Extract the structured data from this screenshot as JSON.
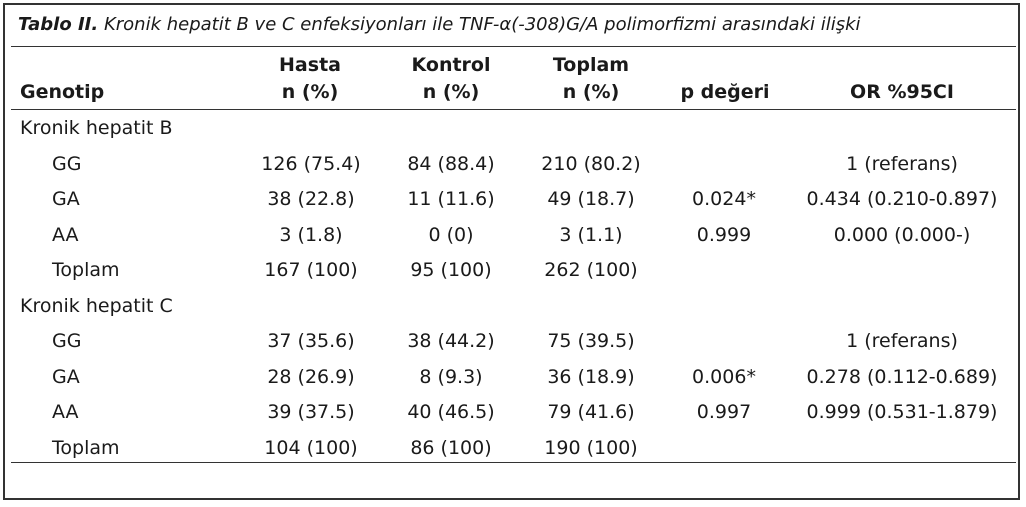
{
  "caption": {
    "lead": "Tablo II.",
    "text": " Kronik hepatit B ve C enfeksiyonları ile TNF-α(-308)G/A polimorfizmi arasındaki ilişki"
  },
  "headers": {
    "genotip": "Genotip",
    "hasta_1": "Hasta",
    "hasta_2": "n (%)",
    "kontrol_1": "Kontrol",
    "kontrol_2": "n (%)",
    "toplam_1": "Toplam",
    "toplam_2": "n (%)",
    "p": "p değeri",
    "or": "OR %95CI"
  },
  "groups": [
    {
      "title": "Kronik hepatit B",
      "rows": [
        {
          "genotype": "GG",
          "hasta": "126 (75.4)",
          "kontrol": "84 (88.4)",
          "toplam": "210 (80.2)",
          "p": "",
          "or": "1 (referans)"
        },
        {
          "genotype": "GA",
          "hasta": "38 (22.8)",
          "kontrol": "11 (11.6)",
          "toplam": "49 (18.7)",
          "p": "0.024*",
          "or": "0.434 (0.210-0.897)"
        },
        {
          "genotype": "AA",
          "hasta": "3 (1.8)",
          "kontrol": "0 (0)",
          "toplam": "3 (1.1)",
          "p": "0.999",
          "or": "0.000 (0.000-)"
        },
        {
          "genotype": "Toplam",
          "hasta": "167 (100)",
          "kontrol": "95 (100)",
          "toplam": "262 (100)",
          "p": "",
          "or": ""
        }
      ]
    },
    {
      "title": "Kronik hepatit C",
      "rows": [
        {
          "genotype": "GG",
          "hasta": "37 (35.6)",
          "kontrol": "38 (44.2)",
          "toplam": "75 (39.5)",
          "p": "",
          "or": "1 (referans)"
        },
        {
          "genotype": "GA",
          "hasta": "28 (26.9)",
          "kontrol": "8 (9.3)",
          "toplam": "36 (18.9)",
          "p": "0.006*",
          "or": "0.278 (0.112-0.689)"
        },
        {
          "genotype": "AA",
          "hasta": "39 (37.5)",
          "kontrol": "40 (46.5)",
          "toplam": "79 (41.6)",
          "p": "0.997",
          "or": "0.999 (0.531-1.879)"
        },
        {
          "genotype": "Toplam",
          "hasta": "104 (100)",
          "kontrol": "86 (100)",
          "toplam": "190 (100)",
          "p": "",
          "or": ""
        }
      ]
    }
  ]
}
